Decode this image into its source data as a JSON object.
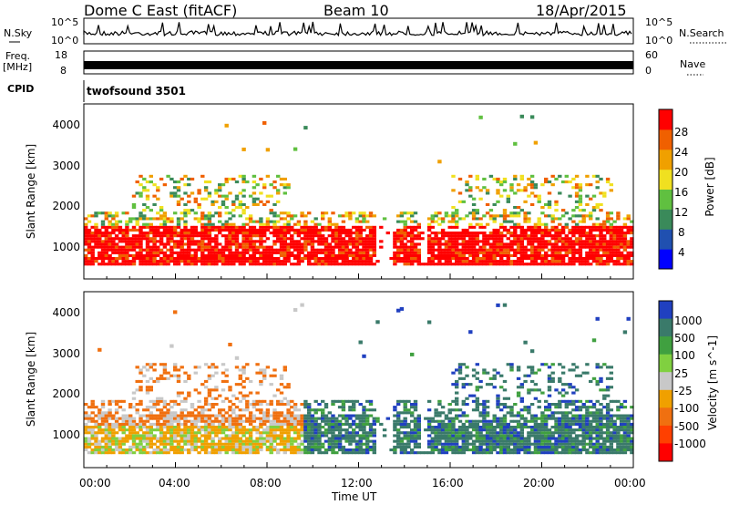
{
  "header": {
    "title": "Dome C East (fitACF)",
    "beam": "Beam 10",
    "date": "18/Apr/2015"
  },
  "noise_panel": {
    "left_label": "N.Sky",
    "right_label": "N.Search",
    "left_ticks": [
      "10^5",
      "10^0"
    ],
    "right_ticks": [
      "10^5",
      "10^0"
    ]
  },
  "freq_panel": {
    "left_label_line1": "Freq.",
    "left_label_line2": "[MHz]",
    "right_label": "Nave",
    "left_ticks": [
      "18",
      "8"
    ],
    "right_ticks": [
      "60",
      "0"
    ]
  },
  "cpid": {
    "label": "CPID",
    "value": "twofsound 3501"
  },
  "colors": {
    "power": [
      "#0000ff",
      "#2050b0",
      "#3a8a5a",
      "#60c040",
      "#f0e020",
      "#f0a000",
      "#f06000",
      "#ff0000"
    ],
    "velocity": [
      "#2040c0",
      "#3a7a6a",
      "#40a040",
      "#80d040",
      "#c8c8c8",
      "#f0a000",
      "#f07010",
      "#ff4000",
      "#ff0000"
    ]
  },
  "chart_data": [
    {
      "type": "heatmap",
      "ylabel": "Slant Range [km]",
      "xlabel": "",
      "yticks": [
        "4000",
        "3000",
        "2000",
        "1000"
      ],
      "ylim": [
        180,
        4500
      ],
      "xlim_hours": [
        0,
        24
      ],
      "colorbar": {
        "label": "Power [dB]",
        "ticks": [
          "28",
          "24",
          "20",
          "16",
          "12",
          "8",
          "4"
        ],
        "range": [
          0,
          32
        ]
      }
    },
    {
      "type": "heatmap",
      "ylabel": "Slant Range [km]",
      "xlabel": "Time UT",
      "xticks": [
        "00:00",
        "04:00",
        "08:00",
        "12:00",
        "16:00",
        "20:00",
        "00:00"
      ],
      "yticks": [
        "4000",
        "3000",
        "2000",
        "1000"
      ],
      "ylim": [
        180,
        4500
      ],
      "xlim_hours": [
        0,
        24
      ],
      "colorbar": {
        "label": "Velocity [m s^-1]",
        "ticks": [
          "1000",
          "500",
          "100",
          "25",
          "-25",
          "-100",
          "-500",
          "-1000"
        ],
        "range": [
          -1200,
          1200
        ]
      }
    }
  ]
}
